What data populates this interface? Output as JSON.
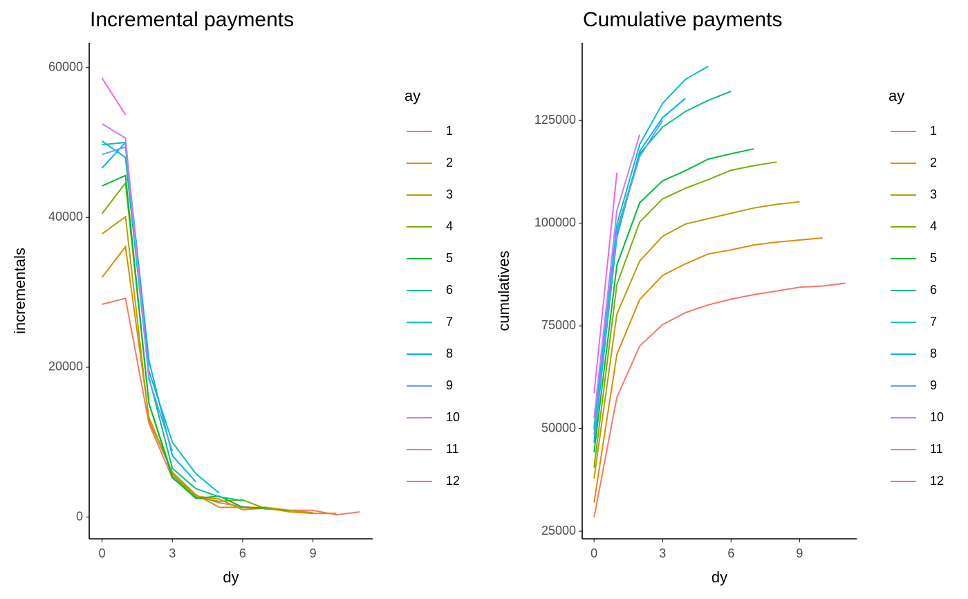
{
  "chart_data": [
    {
      "type": "line",
      "title": "Incremental payments",
      "x_label": "dy",
      "y_label": "incrementals",
      "legend_title": "ay",
      "x": [
        0,
        1,
        2,
        3,
        4,
        5,
        6,
        7,
        8,
        9,
        10,
        11
      ],
      "xlim": [
        -0.55,
        11.55
      ],
      "ylim": [
        -2900,
        63300
      ],
      "xticks": [
        0,
        3,
        6,
        9
      ],
      "yticks": [
        0,
        20000,
        40000,
        60000
      ],
      "grid": false,
      "legend": "right",
      "series": [
        {
          "name": "1",
          "color": "#F8766D",
          "values": [
            28400,
            29200,
            12500,
            5200,
            2900,
            1900,
            1400,
            1100,
            900,
            900,
            300,
            700
          ]
        },
        {
          "name": "2",
          "color": "#DE8C00",
          "values": [
            32000,
            36100,
            13300,
            5900,
            2800,
            2400,
            1000,
            1200,
            700,
            500,
            500,
            null
          ]
        },
        {
          "name": "3",
          "color": "#B79F00",
          "values": [
            37800,
            40100,
            12900,
            6000,
            3000,
            1300,
            1300,
            1300,
            900,
            600,
            null,
            null
          ]
        },
        {
          "name": "4",
          "color": "#7CAE00",
          "values": [
            40500,
            44600,
            15200,
            5600,
            2600,
            2100,
            2300,
            1100,
            900,
            null,
            null,
            null
          ]
        },
        {
          "name": "5",
          "color": "#00BA38",
          "values": [
            44200,
            45600,
            15200,
            5300,
            2500,
            2800,
            1300,
            1200,
            null,
            null,
            null,
            null
          ]
        },
        {
          "name": "6",
          "color": "#00C08B",
          "values": [
            50200,
            48000,
            18700,
            6500,
            3800,
            2700,
            2200,
            null,
            null,
            null,
            null,
            null
          ]
        },
        {
          "name": "7",
          "color": "#00BFC4",
          "values": [
            49700,
            50000,
            19500,
            10000,
            5800,
            3200,
            null,
            null,
            null,
            null,
            null,
            null
          ]
        },
        {
          "name": "8",
          "color": "#00B4F0",
          "values": [
            46600,
            50000,
            20900,
            8200,
            4700,
            null,
            null,
            null,
            null,
            null,
            null,
            null
          ]
        },
        {
          "name": "9",
          "color": "#619CFF",
          "values": [
            48400,
            49400,
            18400,
            8800,
            null,
            null,
            null,
            null,
            null,
            null,
            null,
            null
          ]
        },
        {
          "name": "10",
          "color": "#C77CFF",
          "values": [
            52500,
            50600,
            18500,
            null,
            null,
            null,
            null,
            null,
            null,
            null,
            null,
            null
          ]
        },
        {
          "name": "11",
          "color": "#F564E3",
          "values": [
            58600,
            53700,
            null,
            null,
            null,
            null,
            null,
            null,
            null,
            null,
            null,
            null
          ]
        },
        {
          "name": "12",
          "color": "#FF64B0",
          "values": [
            null,
            null,
            null,
            null,
            null,
            null,
            null,
            null,
            null,
            null,
            null,
            null
          ]
        }
      ]
    },
    {
      "type": "line",
      "title": "Cumulative payments",
      "x_label": "dy",
      "y_label": "cumulatives",
      "legend_title": "ay",
      "x": [
        0,
        1,
        2,
        3,
        4,
        5,
        6,
        7,
        8,
        9,
        10,
        11
      ],
      "xlim": [
        -0.52,
        11.5
      ],
      "ylim": [
        23150,
        143900
      ],
      "xticks": [
        0,
        3,
        6,
        9
      ],
      "yticks": [
        25000,
        50000,
        75000,
        100000,
        125000
      ],
      "grid": false,
      "legend": "right",
      "series": [
        {
          "name": "1",
          "color": "#F8766D",
          "values": [
            28400,
            57600,
            70100,
            75300,
            78200,
            80100,
            81500,
            82600,
            83500,
            84400,
            84700,
            85400
          ]
        },
        {
          "name": "2",
          "color": "#DE8C00",
          "values": [
            32000,
            68100,
            81400,
            87300,
            90100,
            92500,
            93500,
            94700,
            95400,
            95900,
            96400,
            null
          ]
        },
        {
          "name": "3",
          "color": "#B79F00",
          "values": [
            37800,
            77900,
            90800,
            96800,
            99800,
            101100,
            102400,
            103700,
            104600,
            105200,
            null,
            null
          ]
        },
        {
          "name": "4",
          "color": "#7CAE00",
          "values": [
            40500,
            85100,
            100300,
            105900,
            108500,
            110600,
            112900,
            114000,
            114900,
            null,
            null,
            null
          ]
        },
        {
          "name": "5",
          "color": "#00BA38",
          "values": [
            44200,
            89800,
            105000,
            110300,
            112800,
            115600,
            116900,
            118100,
            null,
            null,
            null,
            null
          ]
        },
        {
          "name": "6",
          "color": "#00C08B",
          "values": [
            50200,
            98200,
            116900,
            123400,
            127200,
            129900,
            132100,
            null,
            null,
            null,
            null,
            null
          ]
        },
        {
          "name": "7",
          "color": "#00BFC4",
          "values": [
            49700,
            99700,
            119200,
            129200,
            135000,
            138200,
            null,
            null,
            null,
            null,
            null,
            null
          ]
        },
        {
          "name": "8",
          "color": "#00B4F0",
          "values": [
            46600,
            96600,
            117500,
            125700,
            130400,
            null,
            null,
            null,
            null,
            null,
            null,
            null
          ]
        },
        {
          "name": "9",
          "color": "#619CFF",
          "values": [
            48400,
            97800,
            116200,
            125000,
            null,
            null,
            null,
            null,
            null,
            null,
            null,
            null
          ]
        },
        {
          "name": "10",
          "color": "#C77CFF",
          "values": [
            52500,
            103100,
            121600,
            null,
            null,
            null,
            null,
            null,
            null,
            null,
            null,
            null
          ]
        },
        {
          "name": "11",
          "color": "#F564E3",
          "values": [
            58600,
            112300,
            null,
            null,
            null,
            null,
            null,
            null,
            null,
            null,
            null,
            null
          ]
        },
        {
          "name": "12",
          "color": "#FF64B0",
          "values": [
            null,
            null,
            null,
            null,
            null,
            null,
            null,
            null,
            null,
            null,
            null,
            null
          ]
        }
      ]
    }
  ]
}
